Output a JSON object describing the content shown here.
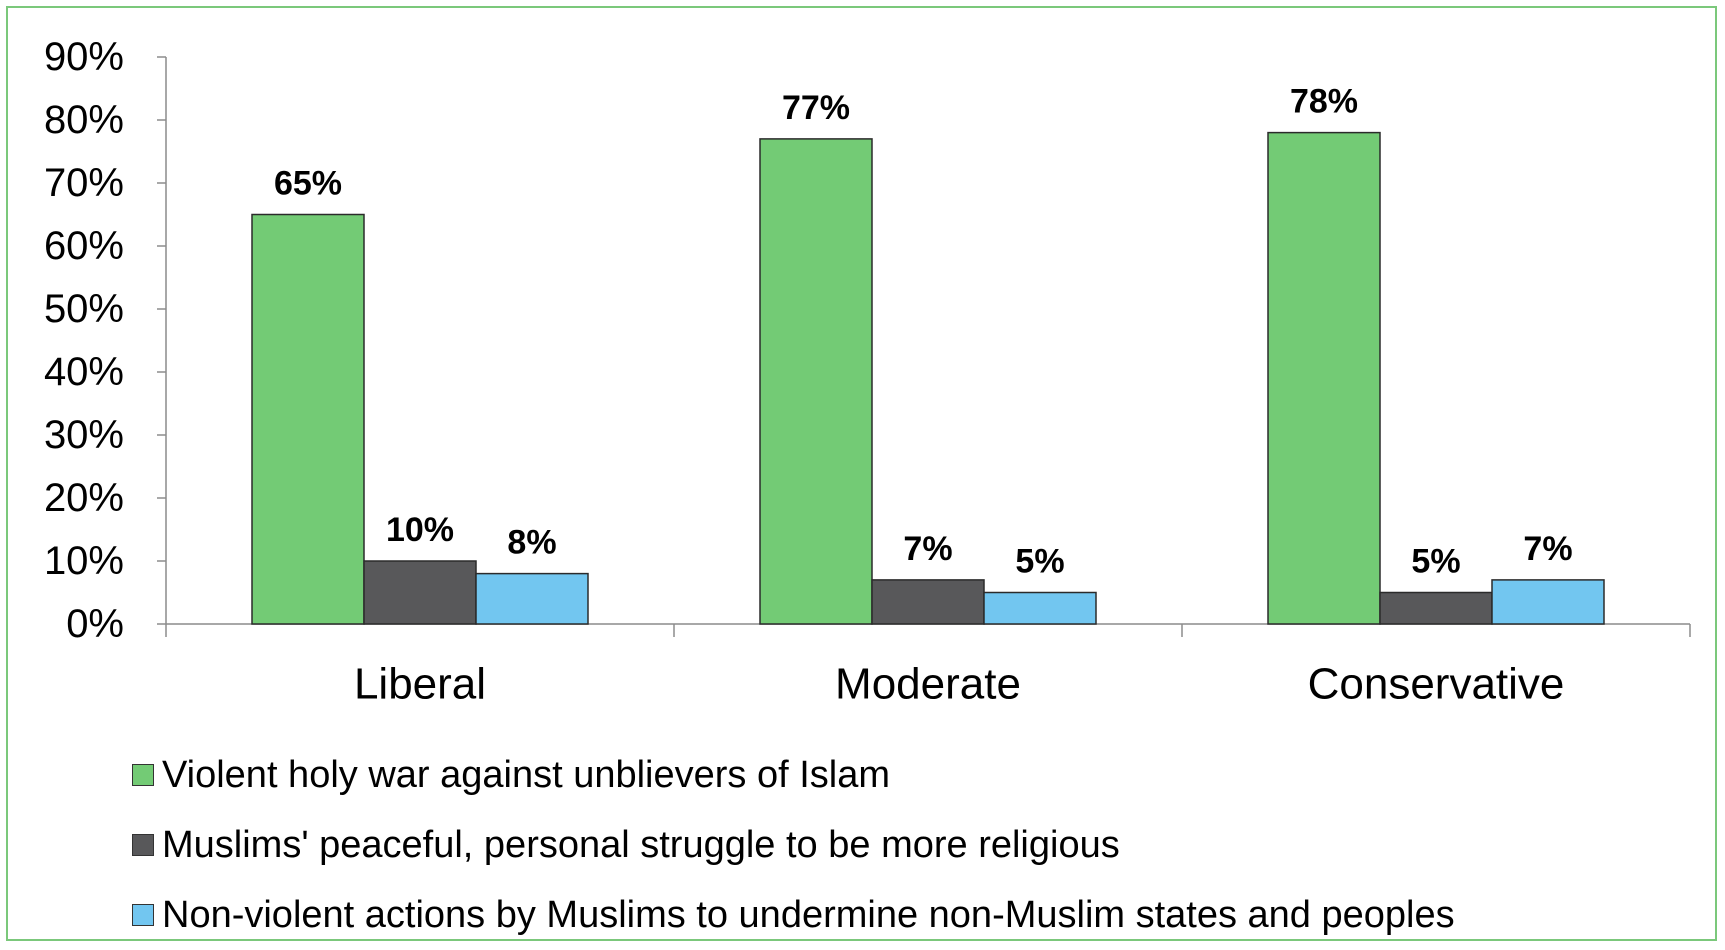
{
  "chart_data": {
    "type": "bar",
    "categories": [
      "Liberal",
      "Moderate",
      "Conservative"
    ],
    "series": [
      {
        "name": "Violent holy war against unblievers of Islam",
        "values": [
          65,
          77,
          78
        ],
        "color": "#73cb75"
      },
      {
        "name": "Muslims' peaceful, personal struggle to be more religious",
        "values": [
          10,
          7,
          5
        ],
        "color": "#58585a"
      },
      {
        "name": "Non-violent actions by Muslims to undermine non-Muslim states and peoples",
        "values": [
          8,
          5,
          7
        ],
        "color": "#72c6f0"
      }
    ],
    "data_labels": [
      [
        "65%",
        "77%",
        "78%"
      ],
      [
        "10%",
        "7%",
        "5%"
      ],
      [
        "8%",
        "5%",
        "7%"
      ]
    ],
    "ylim": [
      0,
      90
    ],
    "yticks": [
      0,
      10,
      20,
      30,
      40,
      50,
      60,
      70,
      80,
      90
    ],
    "ytick_labels": [
      "0%",
      "10%",
      "20%",
      "30%",
      "40%",
      "50%",
      "60%",
      "70%",
      "80%",
      "90%"
    ],
    "legend_position": "bottom",
    "grid": false,
    "frame_color": "#7bc87b"
  }
}
